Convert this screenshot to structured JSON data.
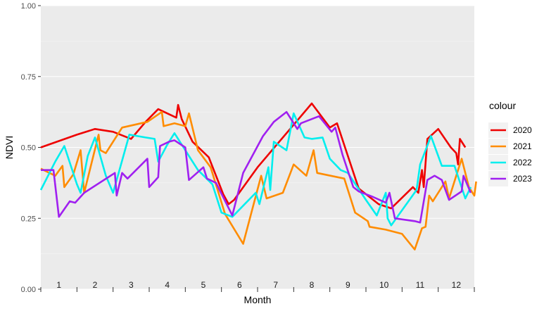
{
  "chart_data": {
    "type": "line",
    "title": "",
    "xlabel": "Month",
    "ylabel": "NDVI",
    "ylim": [
      0,
      1
    ],
    "y_ticks": [
      "0.00",
      "0.25",
      "0.50",
      "0.75",
      "1.00"
    ],
    "month_labels": [
      "1",
      "2",
      "3",
      "4",
      "5",
      "6",
      "7",
      "8",
      "9",
      "10",
      "11",
      "12"
    ],
    "legend_title": "colour",
    "legend_position": "right",
    "grid": true,
    "series": [
      {
        "name": "2020",
        "color": "#ee0000",
        "points": [
          [
            0.5,
            0.5
          ],
          [
            1.5,
            0.545
          ],
          [
            2.0,
            0.565
          ],
          [
            2.5,
            0.555
          ],
          [
            3.0,
            0.53
          ],
          [
            3.4,
            0.59
          ],
          [
            3.75,
            0.635
          ],
          [
            4.25,
            0.605
          ],
          [
            4.3,
            0.65
          ],
          [
            4.4,
            0.6
          ],
          [
            4.7,
            0.52
          ],
          [
            5.15,
            0.465
          ],
          [
            5.55,
            0.335
          ],
          [
            5.7,
            0.3
          ],
          [
            5.85,
            0.315
          ],
          [
            6.5,
            0.43
          ],
          [
            7.5,
            0.58
          ],
          [
            8.0,
            0.655
          ],
          [
            8.5,
            0.57
          ],
          [
            8.7,
            0.585
          ],
          [
            9.0,
            0.47
          ],
          [
            9.3,
            0.355
          ],
          [
            9.85,
            0.3
          ],
          [
            10.2,
            0.285
          ],
          [
            10.8,
            0.36
          ],
          [
            10.95,
            0.34
          ],
          [
            11.05,
            0.42
          ],
          [
            11.1,
            0.36
          ],
          [
            11.2,
            0.53
          ],
          [
            11.5,
            0.565
          ],
          [
            11.85,
            0.5
          ],
          [
            12.0,
            0.48
          ],
          [
            12.05,
            0.44
          ],
          [
            12.1,
            0.53
          ],
          [
            12.25,
            0.5
          ]
        ]
      },
      {
        "name": "2021",
        "color": "#ff8c00",
        "points": [
          [
            0.5,
            0.425
          ],
          [
            0.9,
            0.4
          ],
          [
            1.1,
            0.435
          ],
          [
            1.15,
            0.36
          ],
          [
            1.4,
            0.405
          ],
          [
            1.6,
            0.49
          ],
          [
            1.7,
            0.34
          ],
          [
            2.1,
            0.545
          ],
          [
            2.15,
            0.49
          ],
          [
            2.3,
            0.48
          ],
          [
            2.75,
            0.57
          ],
          [
            3.45,
            0.59
          ],
          [
            3.85,
            0.625
          ],
          [
            3.9,
            0.575
          ],
          [
            4.2,
            0.585
          ],
          [
            4.5,
            0.575
          ],
          [
            4.6,
            0.62
          ],
          [
            4.85,
            0.49
          ],
          [
            5.2,
            0.43
          ],
          [
            5.6,
            0.265
          ],
          [
            6.1,
            0.16
          ],
          [
            6.6,
            0.4
          ],
          [
            6.75,
            0.32
          ],
          [
            7.2,
            0.34
          ],
          [
            7.5,
            0.44
          ],
          [
            7.85,
            0.4
          ],
          [
            8.05,
            0.49
          ],
          [
            8.15,
            0.41
          ],
          [
            8.9,
            0.39
          ],
          [
            9.2,
            0.27
          ],
          [
            9.55,
            0.24
          ],
          [
            9.6,
            0.22
          ],
          [
            10.05,
            0.21
          ],
          [
            10.5,
            0.195
          ],
          [
            10.85,
            0.14
          ],
          [
            11.05,
            0.215
          ],
          [
            11.15,
            0.22
          ],
          [
            11.25,
            0.33
          ],
          [
            11.35,
            0.31
          ],
          [
            11.7,
            0.38
          ],
          [
            11.8,
            0.32
          ],
          [
            12.0,
            0.4
          ],
          [
            12.15,
            0.46
          ],
          [
            12.35,
            0.36
          ],
          [
            12.5,
            0.33
          ],
          [
            12.55,
            0.38
          ]
        ]
      },
      {
        "name": "2022",
        "color": "#00eeee",
        "points": [
          [
            0.5,
            0.35
          ],
          [
            0.9,
            0.45
          ],
          [
            1.15,
            0.505
          ],
          [
            1.5,
            0.37
          ],
          [
            1.6,
            0.34
          ],
          [
            1.8,
            0.47
          ],
          [
            2.0,
            0.535
          ],
          [
            2.3,
            0.4
          ],
          [
            2.5,
            0.34
          ],
          [
            2.95,
            0.545
          ],
          [
            3.4,
            0.535
          ],
          [
            3.65,
            0.53
          ],
          [
            3.75,
            0.45
          ],
          [
            4.0,
            0.51
          ],
          [
            4.2,
            0.55
          ],
          [
            4.5,
            0.49
          ],
          [
            4.7,
            0.45
          ],
          [
            4.85,
            0.42
          ],
          [
            5.25,
            0.37
          ],
          [
            5.5,
            0.27
          ],
          [
            5.8,
            0.255
          ],
          [
            6.45,
            0.34
          ],
          [
            6.55,
            0.3
          ],
          [
            6.8,
            0.43
          ],
          [
            6.85,
            0.35
          ],
          [
            6.95,
            0.52
          ],
          [
            7.3,
            0.49
          ],
          [
            7.5,
            0.62
          ],
          [
            7.8,
            0.535
          ],
          [
            8.0,
            0.53
          ],
          [
            8.3,
            0.535
          ],
          [
            8.5,
            0.46
          ],
          [
            8.8,
            0.42
          ],
          [
            9.0,
            0.41
          ],
          [
            9.5,
            0.315
          ],
          [
            9.8,
            0.26
          ],
          [
            10.05,
            0.34
          ],
          [
            10.1,
            0.25
          ],
          [
            10.2,
            0.225
          ],
          [
            10.9,
            0.35
          ],
          [
            11.0,
            0.44
          ],
          [
            11.3,
            0.54
          ],
          [
            11.6,
            0.435
          ],
          [
            11.95,
            0.435
          ],
          [
            12.25,
            0.32
          ],
          [
            12.4,
            0.36
          ]
        ]
      },
      {
        "name": "2023",
        "color": "#a020f0",
        "points": [
          [
            0.5,
            0.42
          ],
          [
            0.85,
            0.42
          ],
          [
            1.0,
            0.255
          ],
          [
            1.3,
            0.31
          ],
          [
            1.45,
            0.305
          ],
          [
            1.7,
            0.34
          ],
          [
            2.55,
            0.41
          ],
          [
            2.6,
            0.33
          ],
          [
            2.75,
            0.41
          ],
          [
            2.9,
            0.39
          ],
          [
            3.45,
            0.46
          ],
          [
            3.5,
            0.36
          ],
          [
            3.75,
            0.395
          ],
          [
            3.8,
            0.505
          ],
          [
            4.05,
            0.52
          ],
          [
            4.2,
            0.525
          ],
          [
            4.5,
            0.5
          ],
          [
            4.6,
            0.385
          ],
          [
            5.0,
            0.43
          ],
          [
            5.1,
            0.39
          ],
          [
            5.35,
            0.375
          ],
          [
            5.8,
            0.26
          ],
          [
            6.1,
            0.41
          ],
          [
            6.65,
            0.54
          ],
          [
            6.95,
            0.59
          ],
          [
            7.3,
            0.625
          ],
          [
            7.6,
            0.565
          ],
          [
            7.7,
            0.585
          ],
          [
            8.0,
            0.6
          ],
          [
            8.2,
            0.61
          ],
          [
            8.55,
            0.555
          ],
          [
            8.65,
            0.57
          ],
          [
            8.85,
            0.475
          ],
          [
            9.15,
            0.36
          ],
          [
            9.3,
            0.345
          ],
          [
            9.7,
            0.325
          ],
          [
            10.05,
            0.305
          ],
          [
            10.15,
            0.34
          ],
          [
            10.3,
            0.25
          ],
          [
            10.85,
            0.24
          ],
          [
            11.0,
            0.235
          ],
          [
            11.2,
            0.385
          ],
          [
            11.4,
            0.4
          ],
          [
            11.6,
            0.385
          ],
          [
            11.8,
            0.315
          ],
          [
            12.15,
            0.345
          ],
          [
            12.2,
            0.4
          ],
          [
            12.4,
            0.34
          ]
        ]
      }
    ]
  }
}
